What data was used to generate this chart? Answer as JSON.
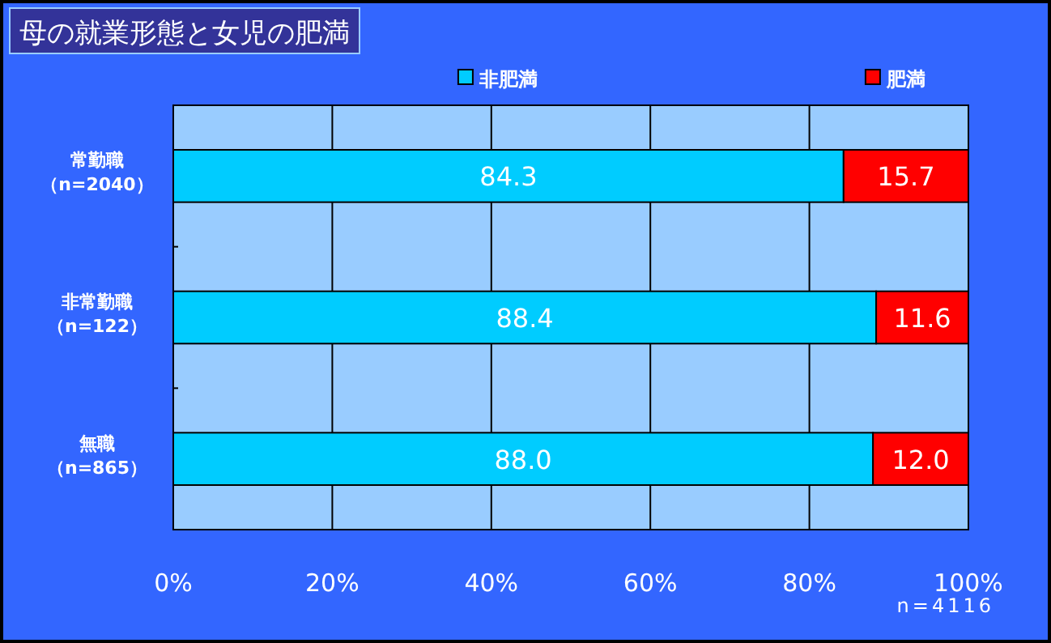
{
  "chart_data": {
    "type": "bar",
    "orientation": "horizontal",
    "stacked": true,
    "title": "母の就業形態と女児の肥満",
    "categories": [
      "常勤職（n=2040）",
      "非常勤職（n=122）",
      "無職（n=865）"
    ],
    "series": [
      {
        "name": "非肥満",
        "color": "#00ccff",
        "values": [
          84.3,
          88.4,
          88.0
        ],
        "value_labels": [
          "84.3",
          "88.4",
          "88.0"
        ]
      },
      {
        "name": "肥満",
        "color": "#ff0000",
        "values": [
          15.7,
          11.6,
          12.0
        ],
        "value_labels": [
          "15.7",
          "11.6",
          "12.0"
        ]
      }
    ],
    "xlim": [
      0,
      100
    ],
    "xticks": [
      {
        "value": 0,
        "label": "0%"
      },
      {
        "value": 20,
        "label": "20%"
      },
      {
        "value": 40,
        "label": "40%"
      },
      {
        "value": 60,
        "label": "60%"
      },
      {
        "value": 80,
        "label": "80%"
      },
      {
        "value": 100,
        "label": "100%"
      }
    ],
    "grid": "x",
    "legend": "top",
    "annotations": [
      "n=4116"
    ]
  }
}
